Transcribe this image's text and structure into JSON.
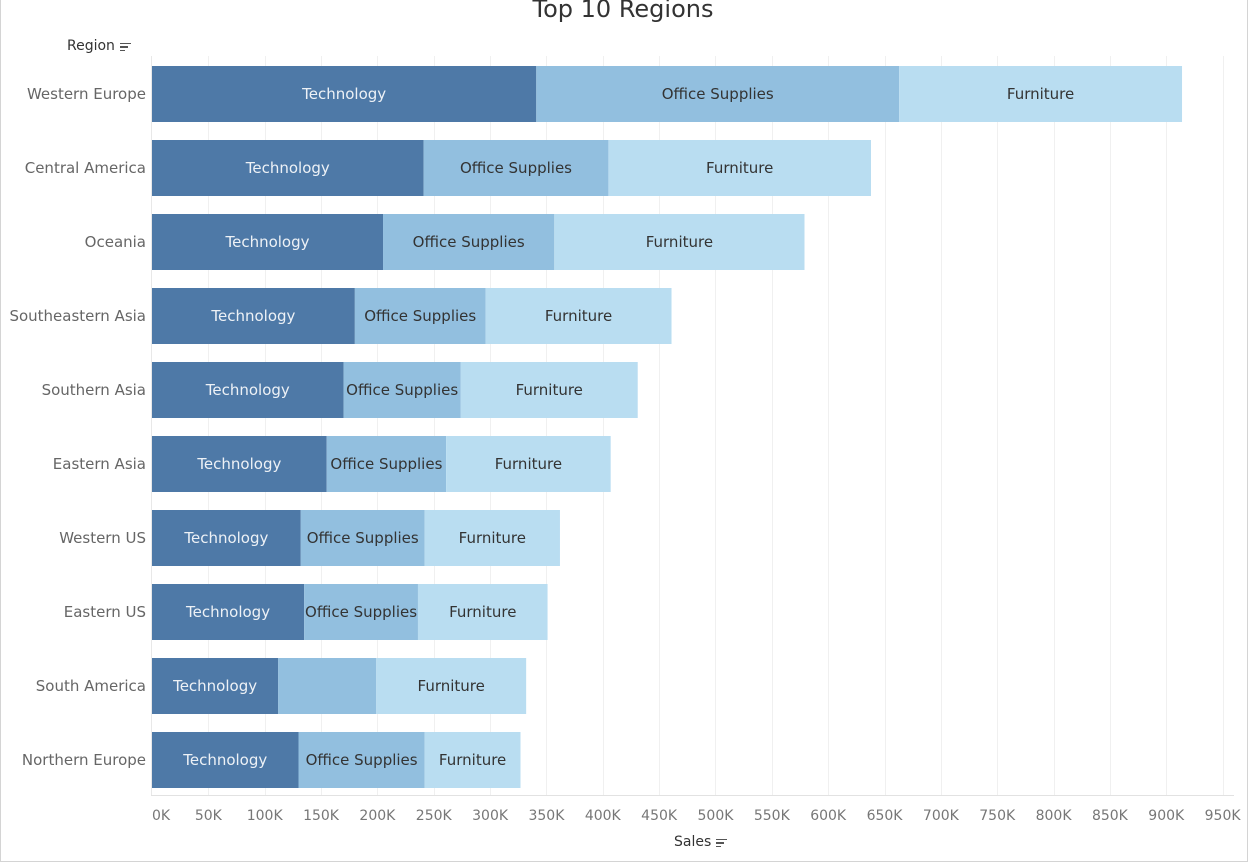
{
  "header": {
    "title": "Top 10 Regions",
    "rows_label": "Region",
    "cols_label": "Sales"
  },
  "colors": {
    "Technology": "#4e79a7",
    "Office Supplies": "#92bfdf",
    "Furniture": "#b9ddf1"
  },
  "chart_data": {
    "type": "bar",
    "orientation": "horizontal",
    "stacked": true,
    "title": "Top 10 Regions",
    "xlabel": "Sales",
    "ylabel": "Region",
    "xlim": [
      0,
      950000
    ],
    "x_ticks": [
      0,
      50000,
      100000,
      150000,
      200000,
      250000,
      300000,
      350000,
      400000,
      450000,
      500000,
      550000,
      600000,
      650000,
      700000,
      750000,
      800000,
      850000,
      900000,
      950000
    ],
    "x_tick_labels": [
      "0K",
      "50K",
      "100K",
      "150K",
      "200K",
      "250K",
      "300K",
      "350K",
      "400K",
      "450K",
      "500K",
      "550K",
      "600K",
      "650K",
      "700K",
      "750K",
      "800K",
      "850K",
      "900K",
      "950K"
    ],
    "grid": "vertical",
    "categories": [
      "Western Europe",
      "Central America",
      "Oceania",
      "Southeastern Asia",
      "Southern Asia",
      "Eastern Asia",
      "Western US",
      "Eastern US",
      "South America",
      "Northern Europe"
    ],
    "series": [
      {
        "name": "Technology",
        "label": "Technology",
        "values": [
          341000,
          241000,
          205000,
          180000,
          170000,
          155000,
          132000,
          135000,
          112000,
          130000
        ]
      },
      {
        "name": "Office Supplies",
        "label": "Office Supplies",
        "values": [
          322000,
          164000,
          152000,
          116000,
          104000,
          106000,
          110000,
          101000,
          87000,
          112000
        ]
      },
      {
        "name": "Furniture",
        "label": "Furniture",
        "values": [
          251000,
          233000,
          222000,
          165000,
          157000,
          146000,
          120000,
          115000,
          133000,
          85000
        ]
      }
    ],
    "hidden_labels": [
      {
        "category": "South America",
        "series": "Office Supplies"
      }
    ]
  }
}
